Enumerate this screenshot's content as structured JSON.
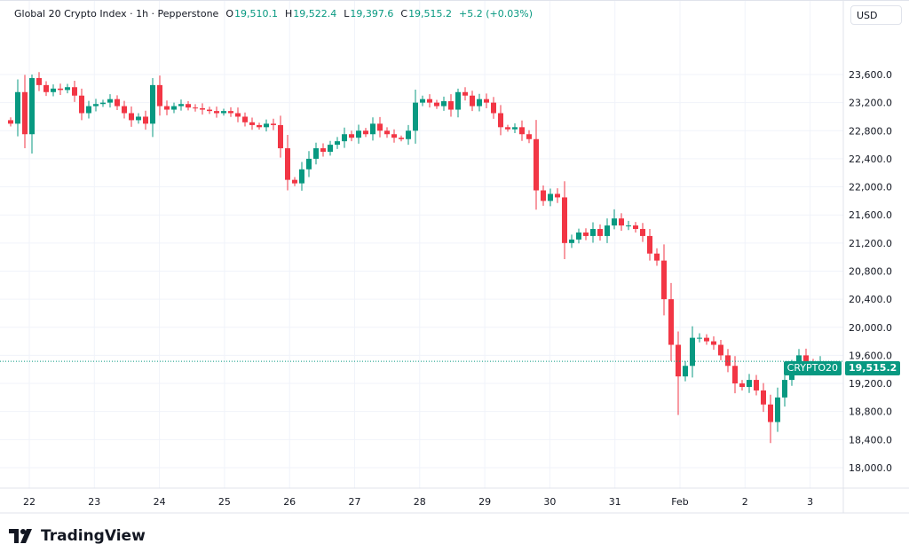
{
  "header": {
    "title": "Global 20 Crypto Index · 1h · Pepperstone",
    "o_label": "O",
    "o": "19,510.1",
    "h_label": "H",
    "h": "19,522.4",
    "l_label": "L",
    "l": "19,397.6",
    "c_label": "C",
    "c": "19,515.2",
    "change": "+5.2 (+0.03%)"
  },
  "currency_button": "USD",
  "symbol_tag": "CRYPTO20",
  "price_tag": "19,515.2",
  "brand": "TradingView",
  "colors": {
    "up": "#089981",
    "down": "#f23645",
    "grid": "#f0f3fa"
  },
  "chart_data": {
    "type": "candlestick",
    "title": "Global 20 Crypto Index · 1h · Pepperstone",
    "ylim": [
      18000,
      23600
    ],
    "y_ticks": [
      18000,
      18400,
      18800,
      19200,
      19600,
      20000,
      20400,
      20800,
      21200,
      21600,
      22000,
      22400,
      22800,
      23200,
      23600
    ],
    "y_tick_labels": [
      "18,000.0",
      "18,400.0",
      "18,800.0",
      "19,200.0",
      "19,600.0",
      "20,000.0",
      "20,400.0",
      "20,800.0",
      "21,200.0",
      "21,600.0",
      "22,000.0",
      "22,400.0",
      "22,800.0",
      "23,200.0",
      "23,600.0"
    ],
    "x_ticks": [
      {
        "label": "22",
        "day": 0
      },
      {
        "label": "23",
        "day": 1
      },
      {
        "label": "24",
        "day": 2
      },
      {
        "label": "25",
        "day": 3
      },
      {
        "label": "26",
        "day": 4
      },
      {
        "label": "27",
        "day": 5
      },
      {
        "label": "28",
        "day": 6
      },
      {
        "label": "29",
        "day": 7
      },
      {
        "label": "30",
        "day": 8
      },
      {
        "label": "31",
        "day": 9
      },
      {
        "label": "Feb",
        "day": 10
      },
      {
        "label": "2",
        "day": 11
      },
      {
        "label": "3",
        "day": 12
      }
    ],
    "first_open": 22950,
    "closes": [
      22900,
      23350,
      22750,
      23550,
      23450,
      23350,
      23400,
      23380,
      23420,
      23300,
      23050,
      23150,
      23180,
      23200,
      23250,
      23150,
      23050,
      22950,
      23000,
      22900,
      23450,
      23150,
      23100,
      23150,
      23180,
      23130,
      23120,
      23100,
      23080,
      23050,
      23080,
      23050,
      23000,
      22920,
      22880,
      22850,
      22900,
      22880,
      22550,
      22100,
      22050,
      22250,
      22400,
      22550,
      22500,
      22600,
      22650,
      22750,
      22700,
      22800,
      22750,
      22900,
      22800,
      22750,
      22700,
      22680,
      22800,
      23200,
      23250,
      23200,
      23150,
      23220,
      23100,
      23350,
      23300,
      23150,
      23250,
      23200,
      23050,
      22850,
      22820,
      22850,
      22750,
      22680,
      21950,
      21800,
      21900,
      21850,
      21200,
      21250,
      21350,
      21300,
      21400,
      21300,
      21450,
      21550,
      21450,
      21450,
      21400,
      21300,
      21050,
      20950,
      20400,
      19750,
      19300,
      19450,
      19850,
      19850,
      19800,
      19750,
      19600,
      19450,
      19200,
      19150,
      19250,
      19100,
      18900,
      18650,
      19000,
      19250,
      19450,
      19600,
      19500,
      19450,
      19515.2
    ],
    "extreme_lows": {
      "94": 18750,
      "107": 18350,
      "39": 21950,
      "2": 22550
    },
    "extreme_highs": {
      "3": 23600,
      "20": 23550,
      "63": 23400,
      "85": 21680
    },
    "last_price": 19515.2
  }
}
